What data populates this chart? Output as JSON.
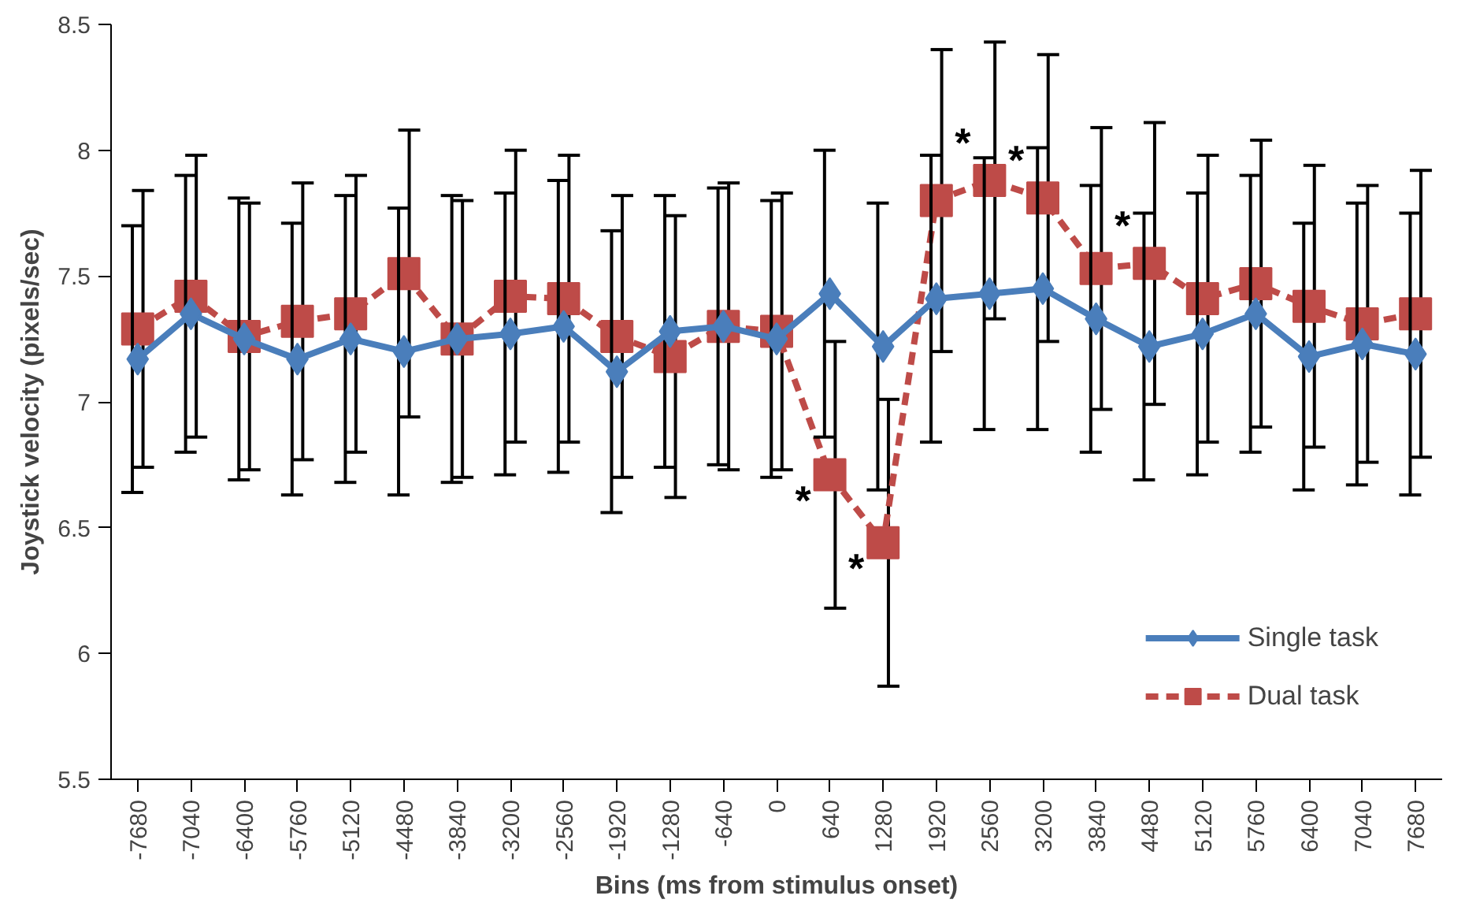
{
  "chart_data": {
    "type": "line",
    "xlabel": "Bins (ms from stimulus onset)",
    "ylabel": "Joystick velocity (pixels/sec)",
    "categories": [
      "-7680",
      "-7040",
      "-6400",
      "-5760",
      "-5120",
      "-4480",
      "-3840",
      "-3200",
      "-2560",
      "-1920",
      "-1280",
      "-640",
      "0",
      "640",
      "1280",
      "1920",
      "2560",
      "3200",
      "3840",
      "4480",
      "5120",
      "5760",
      "6400",
      "7040",
      "7680"
    ],
    "series": [
      {
        "name": "Single task",
        "color": "#4a7ebb",
        "marker": "diamond",
        "line_style": "solid",
        "values": [
          7.17,
          7.35,
          7.25,
          7.17,
          7.25,
          7.2,
          7.25,
          7.27,
          7.3,
          7.12,
          7.28,
          7.3,
          7.25,
          7.43,
          7.22,
          7.41,
          7.43,
          7.45,
          7.33,
          7.22,
          7.27,
          7.35,
          7.18,
          7.23,
          7.19
        ],
        "errors": [
          0.53,
          0.55,
          0.56,
          0.54,
          0.57,
          0.57,
          0.57,
          0.56,
          0.58,
          0.56,
          0.54,
          0.55,
          0.55,
          0.57,
          0.57,
          0.57,
          0.54,
          0.56,
          0.53,
          0.53,
          0.56,
          0.55,
          0.53,
          0.56,
          0.56
        ]
      },
      {
        "name": "Dual task",
        "color": "#be4b48",
        "marker": "square",
        "line_style": "dashed",
        "values": [
          7.29,
          7.42,
          7.26,
          7.32,
          7.35,
          7.51,
          7.25,
          7.42,
          7.41,
          7.26,
          7.18,
          7.3,
          7.28,
          6.71,
          6.44,
          7.8,
          7.88,
          7.81,
          7.53,
          7.55,
          7.41,
          7.47,
          7.38,
          7.31,
          7.35
        ],
        "errors": [
          0.55,
          0.56,
          0.53,
          0.55,
          0.55,
          0.57,
          0.55,
          0.58,
          0.57,
          0.56,
          0.56,
          0.57,
          0.55,
          0.53,
          0.57,
          0.6,
          0.55,
          0.57,
          0.56,
          0.56,
          0.57,
          0.57,
          0.56,
          0.55,
          0.57
        ]
      }
    ],
    "ylim": [
      5.5,
      8.5
    ],
    "yticks": [
      5.5,
      6,
      6.5,
      7,
      7.5,
      8,
      8.5
    ],
    "annotations": [
      {
        "text": "*",
        "x": "640",
        "y": 6.71
      },
      {
        "text": "*",
        "x": "1280",
        "y": 6.44
      },
      {
        "text": "*",
        "x": "2560",
        "y": 7.88
      },
      {
        "text": "*",
        "x": "3200",
        "y": 7.81
      },
      {
        "text": "*",
        "x": "4480",
        "y": 7.55
      }
    ],
    "legend": "bottom right",
    "grid": false
  }
}
